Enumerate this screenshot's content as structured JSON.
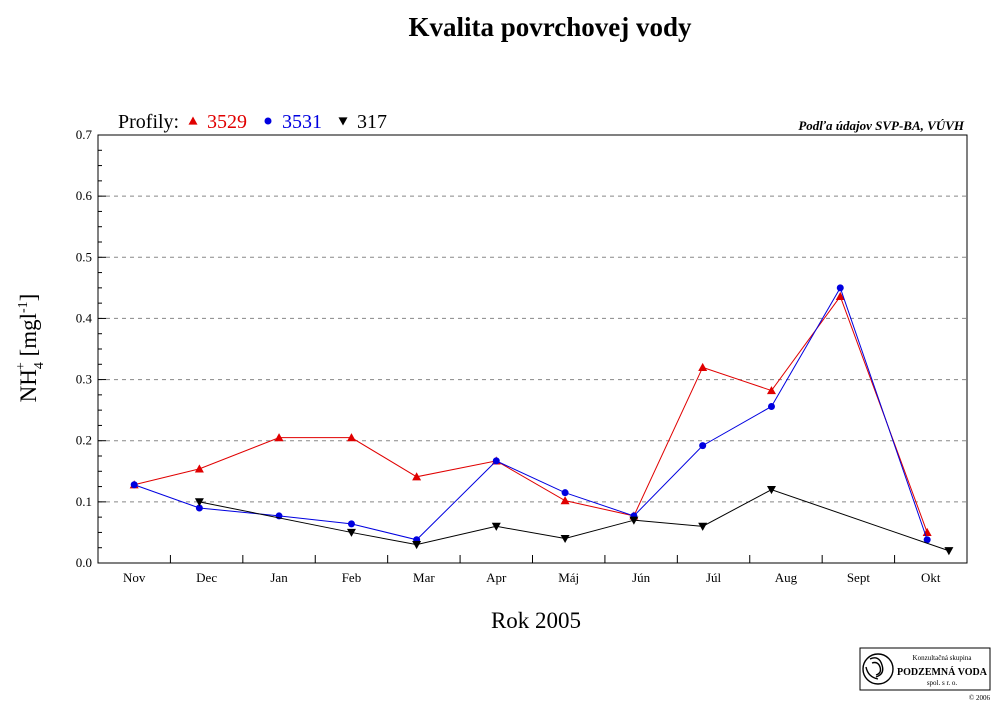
{
  "chart_data": {
    "type": "line",
    "title": "Kvalita povrchovej vody",
    "xlabel": "Rok 2005",
    "ylabel": {
      "base": "NH",
      "sub": "4",
      "sup": "+",
      "unit_open": " [mgl",
      "unit_sup": "-1",
      "unit_close": "]"
    },
    "categories": [
      "Nov",
      "Dec",
      "Jan",
      "Feb",
      "Mar",
      "Apr",
      "Máj",
      "Jún",
      "Júl",
      "Aug",
      "Sept",
      "Okt"
    ],
    "ylim": [
      0,
      0.7
    ],
    "yticks": [
      "0.0",
      "0.1",
      "0.2",
      "0.3",
      "0.4",
      "0.5",
      "0.6",
      "0.7"
    ],
    "grid": "horizontal dashed",
    "legend_label": "Profily:",
    "legend_position": "top-left",
    "source_note": "Podľa údajov SVP-BA, VÚVH",
    "series": [
      {
        "name": "3529",
        "color": "#e00000",
        "marker": "triangle-up",
        "x": [
          0.0,
          0.9,
          2.0,
          3.0,
          3.9,
          5.0,
          5.95,
          6.9,
          7.85,
          8.8,
          9.75,
          10.95
        ],
        "values": [
          0.128,
          0.154,
          0.205,
          0.205,
          0.141,
          0.167,
          0.102,
          0.077,
          0.32,
          0.282,
          0.436,
          0.05
        ]
      },
      {
        "name": "3531",
        "color": "#0000e0",
        "marker": "circle",
        "x": [
          0.0,
          0.9,
          2.0,
          3.0,
          3.9,
          5.0,
          5.95,
          6.9,
          7.85,
          8.8,
          9.75,
          10.95
        ],
        "values": [
          0.128,
          0.09,
          0.077,
          0.064,
          0.038,
          0.167,
          0.115,
          0.077,
          0.192,
          0.256,
          0.45,
          0.038
        ]
      },
      {
        "name": "317",
        "color": "#000000",
        "marker": "triangle-down",
        "x": [
          0.9,
          3.0,
          3.9,
          5.0,
          5.95,
          6.9,
          7.85,
          8.8,
          11.25
        ],
        "values": [
          0.1,
          0.05,
          0.03,
          0.06,
          0.04,
          0.07,
          0.06,
          0.12,
          0.02
        ]
      }
    ]
  },
  "logo": {
    "top_text": "Konzultačná skupina",
    "main_text": "PODZEMNÁ VODA",
    "bottom_text": "spol. s r. o.",
    "copyright": "© 2006"
  }
}
